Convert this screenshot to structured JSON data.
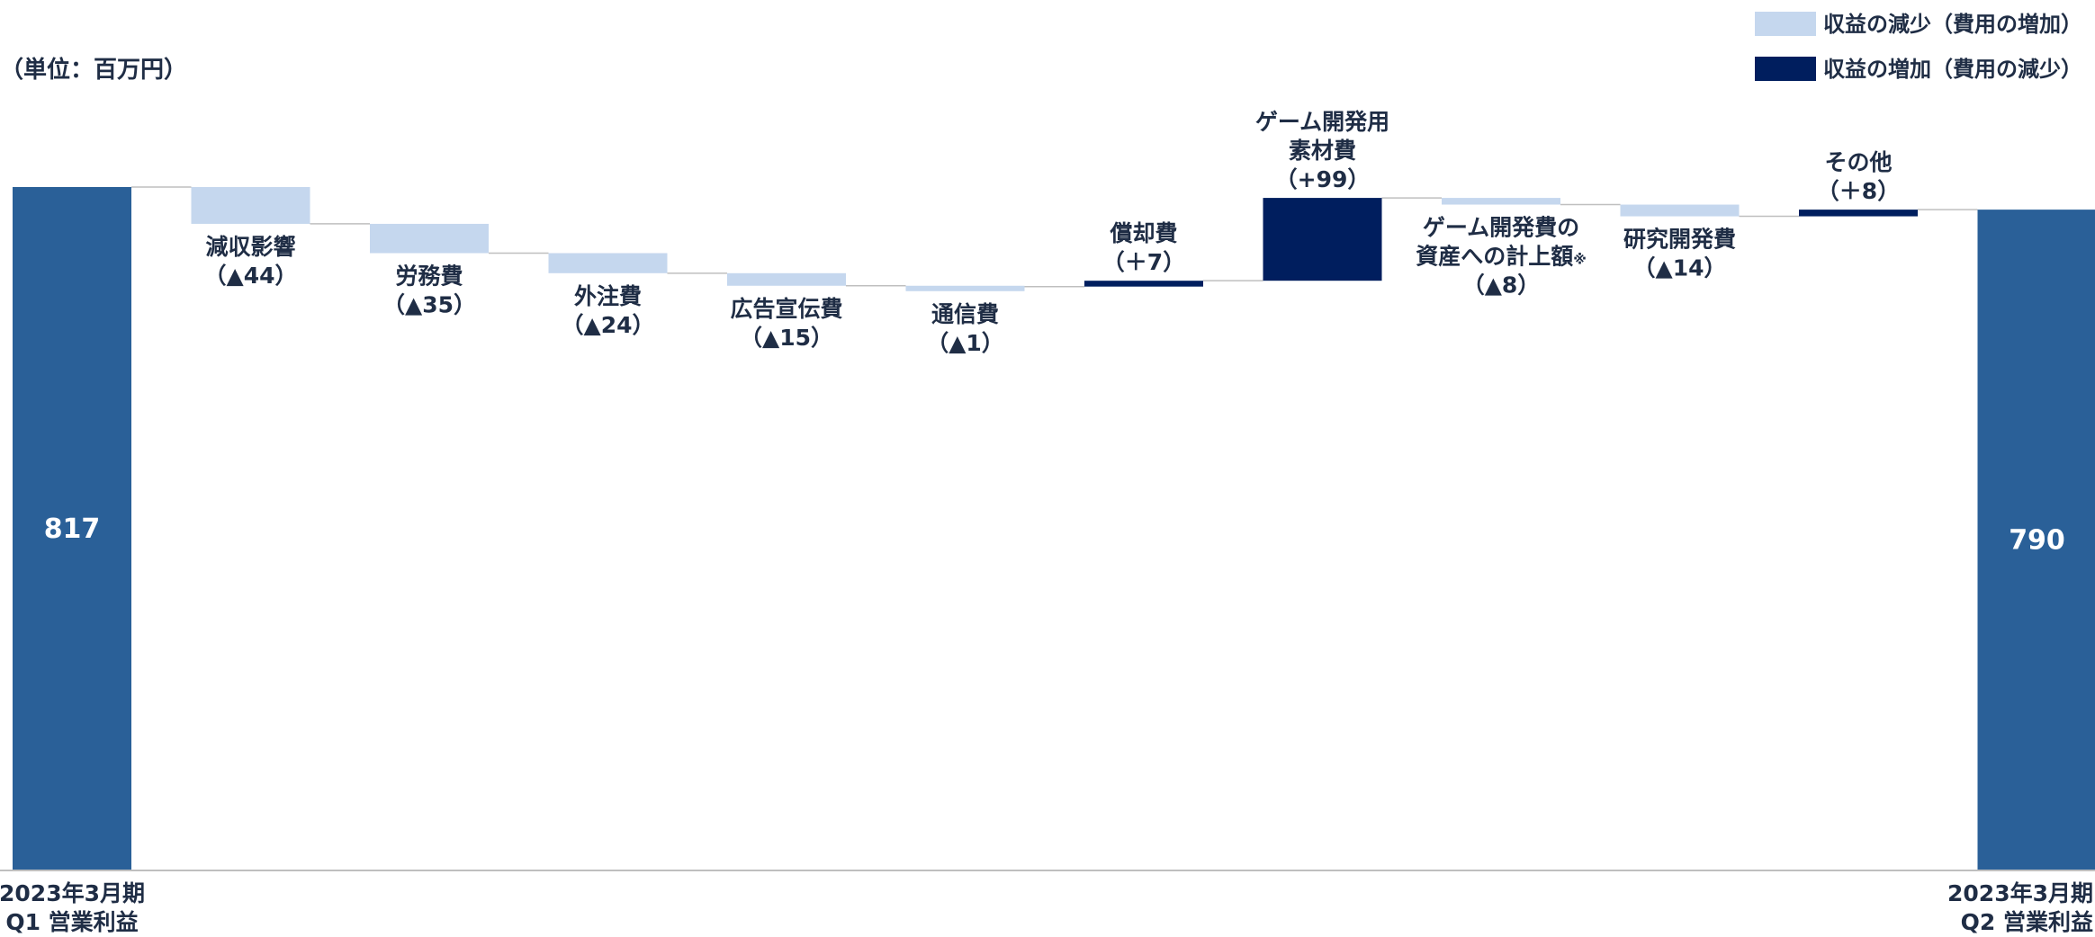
{
  "chart_data": {
    "type": "waterfall",
    "unit_label": "（単位：百万円）",
    "legend": {
      "placement": "top-right",
      "items": [
        {
          "label": "収益の減少（費用の増加）",
          "color": "#C5D7EE"
        },
        {
          "label": "収益の増加（費用の減少）",
          "color": "#001E5E"
        }
      ]
    },
    "colors": {
      "total": "#2A6098",
      "decrease": "#C5D7EE",
      "increase": "#001E5E",
      "axis": "#BFBFBF",
      "connector": "#BFBFBF",
      "text": "#1F2D45",
      "total_value_text": "#FFFFFF"
    },
    "ylim": [
      0,
      817
    ],
    "start": {
      "value": 817,
      "value_label": "817",
      "label_lines": [
        "2023年3月期",
        "Q1 営業利益"
      ]
    },
    "end": {
      "value": 790,
      "value_label": "790",
      "label_lines": [
        "2023年3月期",
        "Q2 営業利益"
      ]
    },
    "steps": [
      {
        "label_lines": [
          "減収影響"
        ],
        "change_label": "（▲44）",
        "delta": -44
      },
      {
        "label_lines": [
          "労務費"
        ],
        "change_label": "（▲35）",
        "delta": -35
      },
      {
        "label_lines": [
          "外注費"
        ],
        "change_label": "（▲24）",
        "delta": -24
      },
      {
        "label_lines": [
          "広告宣伝費"
        ],
        "change_label": "（▲15）",
        "delta": -15
      },
      {
        "label_lines": [
          "通信費"
        ],
        "change_label": "（▲1）",
        "delta": -1
      },
      {
        "label_lines": [
          "償却費"
        ],
        "change_label": "（＋7）",
        "delta": 7
      },
      {
        "label_lines": [
          "ゲーム開発用",
          "素材費"
        ],
        "change_label": "（+99）",
        "delta": 99
      },
      {
        "label_lines": [
          "ゲーム開発費の",
          "資産への計上額"
        ],
        "note_mark": "※",
        "change_label": "（▲8）",
        "delta": -8
      },
      {
        "label_lines": [
          "研究開発費"
        ],
        "change_label": "（▲14）",
        "delta": -14
      },
      {
        "label_lines": [
          "その他"
        ],
        "change_label": "（＋8）",
        "delta": 8
      }
    ]
  }
}
